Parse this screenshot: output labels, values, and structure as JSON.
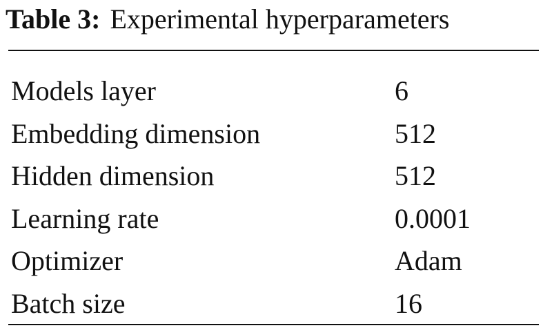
{
  "title": {
    "label": "Table 3:",
    "text": "Experimental hyperparameters"
  },
  "table": {
    "rows": [
      [
        "Models layer",
        "6"
      ],
      [
        "Embedding dimension",
        "512"
      ],
      [
        "Hidden dimension",
        "512"
      ],
      [
        "Learning rate",
        "0.0001"
      ],
      [
        "Optimizer",
        "Adam"
      ],
      [
        "Batch size",
        "16"
      ]
    ]
  }
}
